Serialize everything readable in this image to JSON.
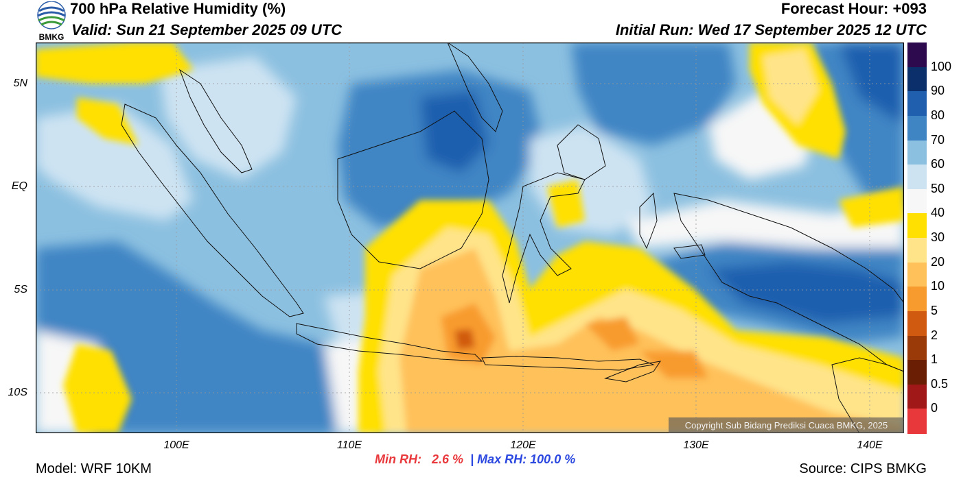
{
  "header": {
    "title": "700 hPa Relative Humidity (%)",
    "valid": "Valid: Sun 21 September 2025 09 UTC",
    "forecast_hour": "Forecast Hour: +093",
    "initial_run": "Initial Run: Wed 17 September 2025 12 UTC",
    "logo_text": "BMKG"
  },
  "map": {
    "lat_labels": [
      "5N",
      "EQ",
      "5S",
      "10S"
    ],
    "lon_labels": [
      "100E",
      "110E",
      "120E",
      "130E",
      "140E"
    ],
    "copyright": "Copyright Sub Bidang Prediksi Cuaca BMKG, 2025"
  },
  "colorbar": {
    "labels": [
      "100",
      "90",
      "80",
      "70",
      "60",
      "50",
      "40",
      "30",
      "20",
      "10",
      "5",
      "2",
      "1",
      "0.5",
      "0"
    ],
    "colors": [
      "#2d0a4e",
      "#0b2f6b",
      "#1f5fae",
      "#3f85c4",
      "#8cc0e0",
      "#cde3f2",
      "#f7f7f7",
      "#ffe000",
      "#ffe48a",
      "#ffc15a",
      "#f89b2e",
      "#d05a10",
      "#9a3a08",
      "#6a1f05",
      "#a01818",
      "#e8383c"
    ]
  },
  "stats": {
    "min_label": "Min RH:",
    "min_value": "2.6 %",
    "separator": "|",
    "max_label": "Max RH:",
    "max_value": "100.0 %"
  },
  "footer": {
    "model": "Model: WRF 10KM",
    "source": "Source: CIPS BMKG"
  }
}
